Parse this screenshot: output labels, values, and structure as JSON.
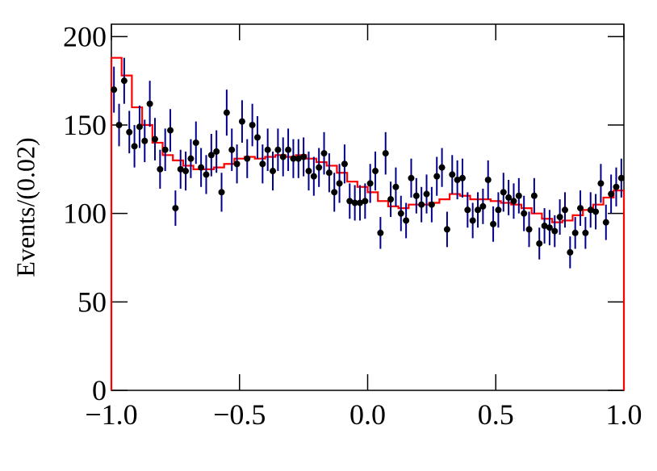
{
  "chart_data": {
    "type": "errorbar_hist",
    "ylabel": "Events/(0.02)",
    "xlim": [
      -1,
      1
    ],
    "ylim": [
      0,
      207
    ],
    "xticks": [
      {
        "value": -1,
        "label": "−1.0"
      },
      {
        "value": -0.5,
        "label": "−0.5"
      },
      {
        "value": 0,
        "label": "0.0"
      },
      {
        "value": 0.5,
        "label": "0.5"
      },
      {
        "value": 1,
        "label": "1.0"
      }
    ],
    "yticks": [
      0,
      50,
      100,
      150,
      200
    ],
    "x": [
      -0.99,
      -0.97,
      -0.95,
      -0.93,
      -0.91,
      -0.89,
      -0.87,
      -0.85,
      -0.83,
      -0.81,
      -0.79,
      -0.77,
      -0.75,
      -0.73,
      -0.71,
      -0.69,
      -0.67,
      -0.65,
      -0.63,
      -0.61,
      -0.59,
      -0.57,
      -0.55,
      -0.53,
      -0.51,
      -0.49,
      -0.47,
      -0.45,
      -0.43,
      -0.41,
      -0.39,
      -0.37,
      -0.35,
      -0.33,
      -0.31,
      -0.29,
      -0.27,
      -0.25,
      -0.23,
      -0.21,
      -0.19,
      -0.17,
      -0.15,
      -0.13,
      -0.11,
      -0.09,
      -0.07,
      -0.05,
      -0.03,
      -0.01,
      0.01,
      0.03,
      0.05,
      0.07,
      0.09,
      0.11,
      0.13,
      0.15,
      0.17,
      0.19,
      0.21,
      0.23,
      0.25,
      0.27,
      0.29,
      0.31,
      0.33,
      0.35,
      0.37,
      0.39,
      0.41,
      0.43,
      0.45,
      0.47,
      0.49,
      0.51,
      0.53,
      0.55,
      0.57,
      0.59,
      0.61,
      0.63,
      0.65,
      0.67,
      0.69,
      0.71,
      0.73,
      0.75,
      0.77,
      0.79,
      0.81,
      0.83,
      0.85,
      0.87,
      0.89,
      0.91,
      0.93,
      0.95,
      0.97,
      0.99
    ],
    "series": [
      {
        "color": "#000000",
        "error_color": "#00008b",
        "values": [
          170,
          150,
          175,
          146,
          138,
          149,
          141,
          162,
          142,
          125,
          136,
          147,
          103,
          125,
          124,
          131,
          140,
          126,
          122,
          133,
          135,
          112,
          157,
          136,
          128,
          152,
          131,
          150,
          143,
          128,
          136,
          124,
          136,
          132,
          136,
          131,
          131,
          132,
          124,
          121,
          126,
          134,
          123,
          112,
          117,
          128,
          107,
          106,
          106,
          107,
          117,
          124,
          89,
          134,
          108,
          115,
          100,
          96,
          120,
          110,
          105,
          111,
          105,
          121,
          126,
          91,
          122,
          119,
          120,
          102,
          96,
          102,
          104,
          119,
          94,
          102,
          112,
          109,
          107,
          110,
          100,
          91,
          110,
          83,
          93,
          92,
          90,
          98,
          102,
          78,
          89,
          103,
          89,
          102,
          101,
          117,
          95,
          111,
          115,
          120
        ],
        "errors": [
          13,
          12,
          13,
          12,
          12,
          12,
          12,
          13,
          12,
          11,
          12,
          12,
          10,
          11,
          11,
          11,
          12,
          11,
          11,
          12,
          12,
          11,
          13,
          12,
          11,
          12,
          11,
          12,
          12,
          11,
          12,
          11,
          12,
          11,
          12,
          11,
          11,
          11,
          11,
          11,
          11,
          12,
          11,
          11,
          11,
          11,
          10,
          10,
          10,
          10,
          11,
          11,
          9,
          12,
          10,
          11,
          10,
          10,
          11,
          10,
          10,
          11,
          10,
          11,
          11,
          10,
          11,
          11,
          11,
          10,
          10,
          10,
          10,
          11,
          10,
          10,
          11,
          10,
          10,
          10,
          10,
          10,
          10,
          9,
          10,
          10,
          9,
          10,
          10,
          9,
          9,
          10,
          9,
          10,
          10,
          11,
          10,
          11,
          11,
          11
        ]
      }
    ],
    "model": {
      "color": "#ff0000",
      "bins": [
        -1,
        -0.96,
        -0.92,
        -0.88,
        -0.84,
        -0.8,
        -0.76,
        -0.72,
        -0.68,
        -0.64,
        -0.6,
        -0.56,
        -0.52,
        -0.48,
        -0.44,
        -0.4,
        -0.36,
        -0.32,
        -0.28,
        -0.24,
        -0.2,
        -0.16,
        -0.12,
        -0.08,
        -0.04,
        0,
        0.04,
        0.08,
        0.12,
        0.16,
        0.2,
        0.24,
        0.28,
        0.32,
        0.36,
        0.4,
        0.44,
        0.48,
        0.52,
        0.56,
        0.6,
        0.64,
        0.68,
        0.72,
        0.76,
        0.8,
        0.84,
        0.88,
        0.92,
        0.96,
        1
      ],
      "values": [
        188,
        178,
        160,
        150,
        140,
        133,
        130,
        127,
        125,
        125,
        126,
        128,
        131,
        132,
        131,
        132,
        133,
        132,
        133,
        131,
        129,
        127,
        123,
        118,
        115,
        112,
        107,
        104,
        103,
        105,
        105,
        106,
        108,
        111,
        110,
        108,
        108,
        107,
        106,
        105,
        103,
        100,
        97,
        95,
        96,
        99,
        102,
        105,
        109,
        113
      ]
    }
  }
}
